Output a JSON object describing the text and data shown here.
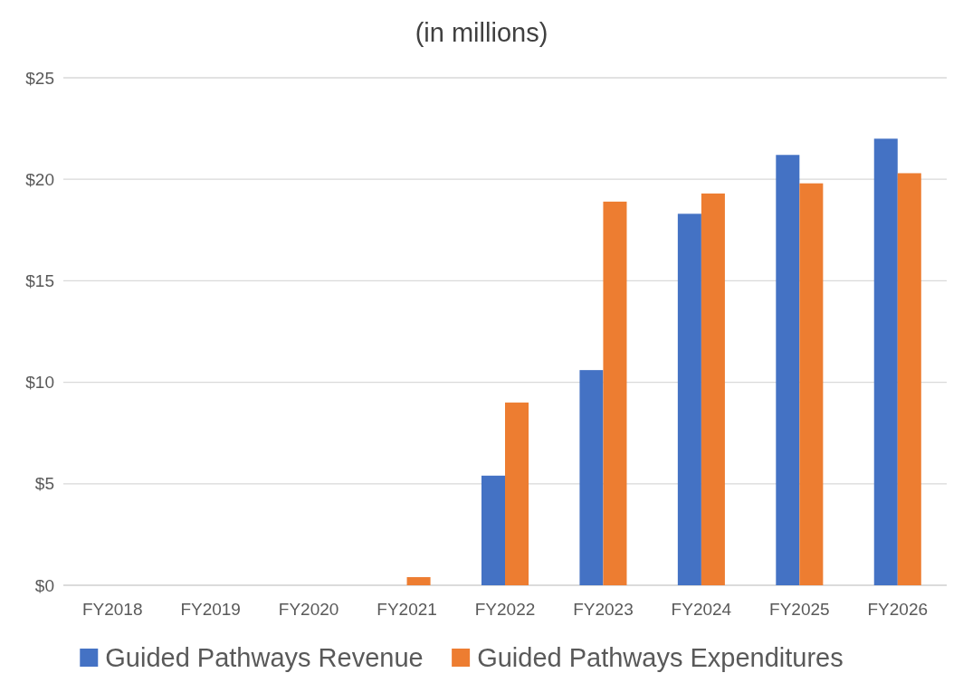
{
  "chart_data": {
    "type": "bar",
    "title": "(in millions)",
    "categories": [
      "FY2018",
      "FY2019",
      "FY2020",
      "FY2021",
      "FY2022",
      "FY2023",
      "FY2024",
      "FY2025",
      "FY2026"
    ],
    "series": [
      {
        "name": "Guided Pathways Revenue",
        "color": "#4472c4",
        "values": [
          0,
          0,
          0,
          0,
          5.4,
          10.6,
          18.3,
          21.2,
          22.0
        ]
      },
      {
        "name": "Guided Pathways Expenditures",
        "color": "#ed7d31",
        "values": [
          0,
          0,
          0,
          0.4,
          9.0,
          18.9,
          19.3,
          19.8,
          20.3
        ]
      }
    ],
    "ylim": [
      0,
      25
    ],
    "yticks": [
      {
        "value": 0,
        "label": "$0"
      },
      {
        "value": 5,
        "label": "$5"
      },
      {
        "value": 10,
        "label": "$10"
      },
      {
        "value": 15,
        "label": "$15"
      },
      {
        "value": 20,
        "label": "$20"
      },
      {
        "value": 25,
        "label": "$25"
      }
    ],
    "grid": "y",
    "legend": "bottom"
  }
}
